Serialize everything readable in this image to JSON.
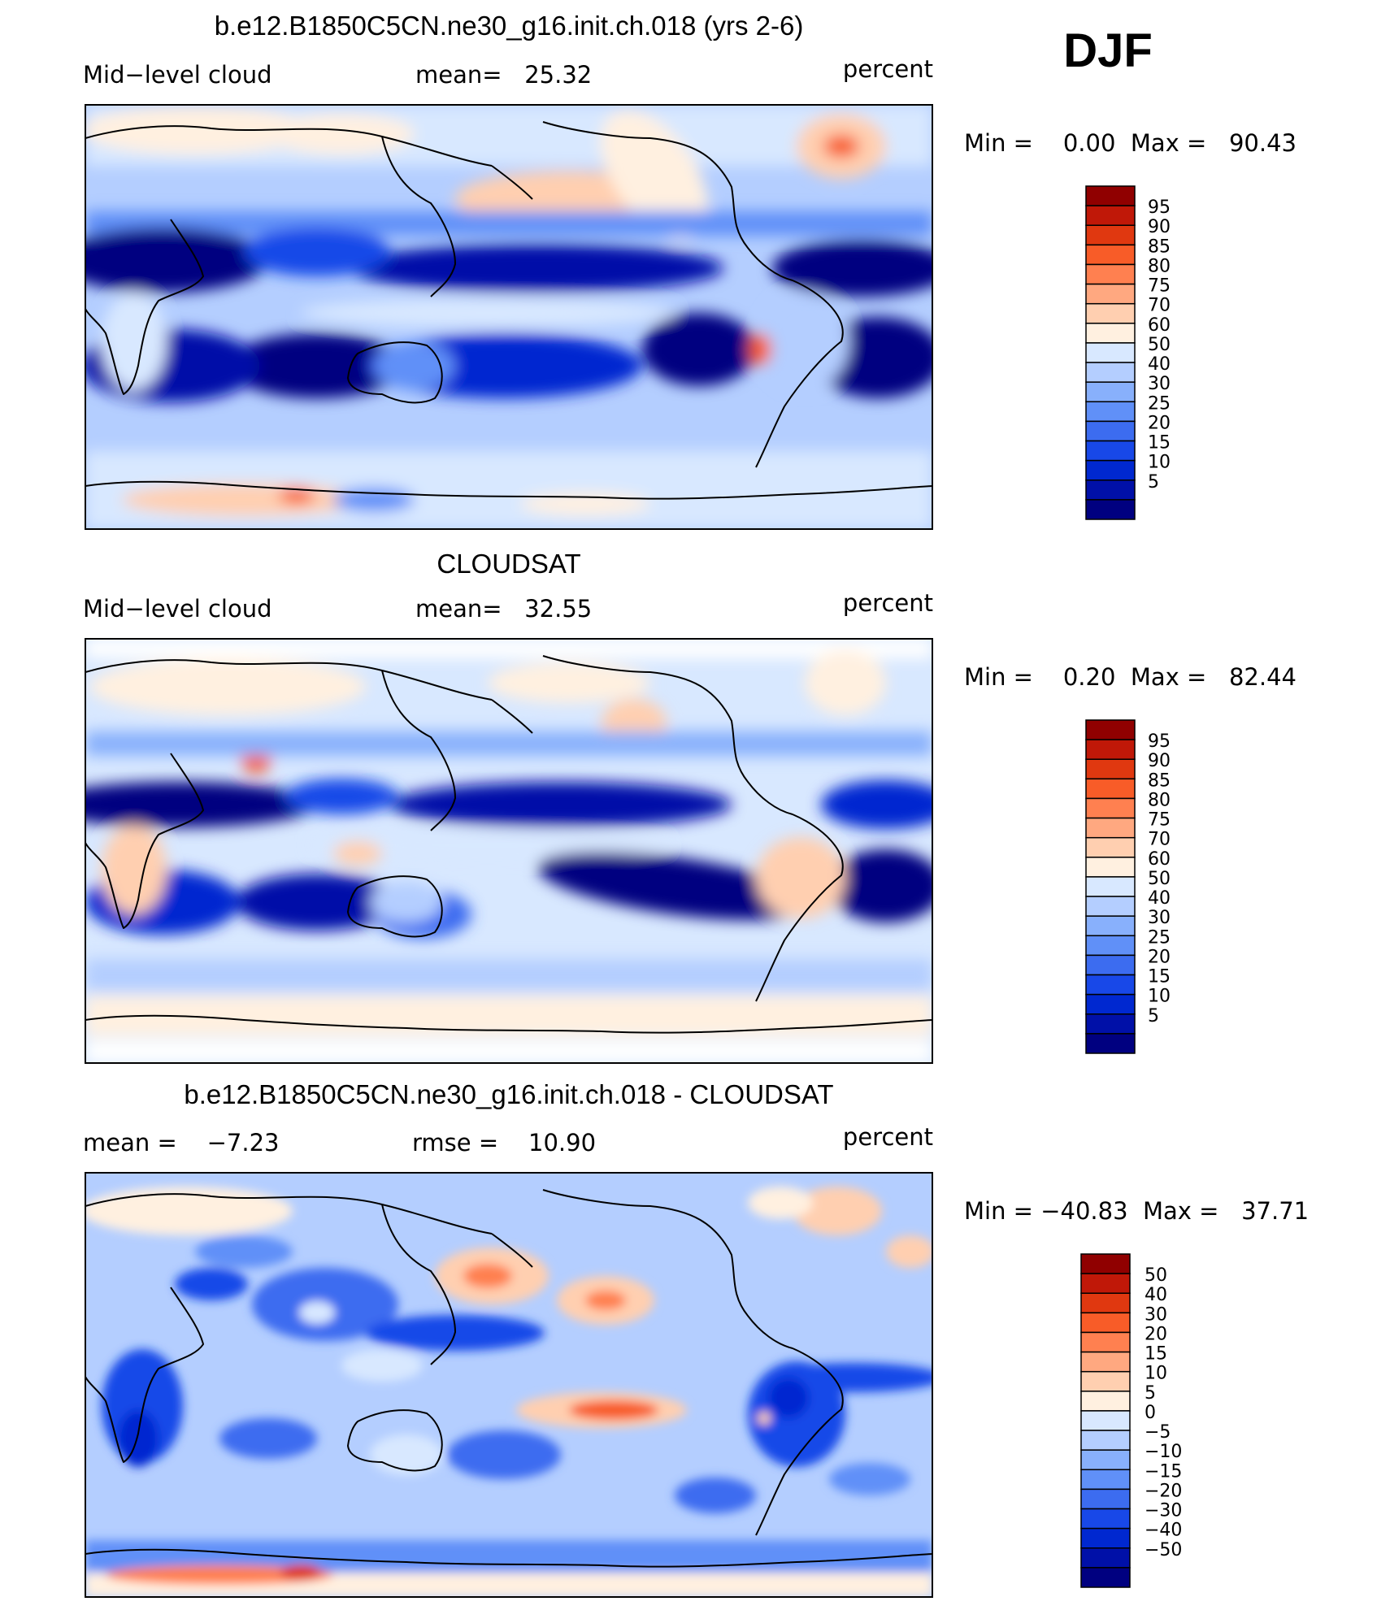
{
  "season": "DJF",
  "units_label": "percent",
  "colors": {
    "seq_scale": [
      "#000080",
      "#0010a8",
      "#0028d0",
      "#1848e8",
      "#3c6cf0",
      "#6090f8",
      "#88b0fc",
      "#b4ceff",
      "#d8e8ff",
      "#fff0e0",
      "#ffcfb0",
      "#ffa880",
      "#ff8050",
      "#f85c28",
      "#e03810",
      "#c01808",
      "#900000"
    ],
    "diff_scale": [
      "#000080",
      "#0010a8",
      "#0028d0",
      "#1848e8",
      "#3c6cf0",
      "#6090f8",
      "#88b0fc",
      "#b4ceff",
      "#d8e8ff",
      "#fff0e0",
      "#ffcfb0",
      "#ffa880",
      "#ff8050",
      "#f85c28",
      "#e03810",
      "#c01808",
      "#900000"
    ],
    "coastline": "#000000"
  },
  "panels": [
    {
      "title": "b.e12.B1850C5CN.ne30_g16.init.ch.018 (yrs 2-6)",
      "left_label": "Mid−level cloud",
      "center_label": "mean=   25.32",
      "right_label": "percent",
      "min_max": "Min =    0.00  Max =   90.43"
    },
    {
      "title": "CLOUDSAT",
      "left_label": "Mid−level cloud",
      "center_label": "mean=   32.55",
      "right_label": "percent",
      "min_max": "Min =    0.20  Max =   82.44"
    },
    {
      "title": "b.e12.B1850C5CN.ne30_g16.init.ch.018 - CLOUDSAT",
      "left_label": "mean =    −7.23",
      "center_label": "rmse =    10.90",
      "right_label": "percent",
      "min_max": "Min = −40.83  Max =   37.71"
    }
  ],
  "chart_data": [
    {
      "type": "heatmap",
      "subtype": "global-map-filled-contour",
      "title": "b.e12.B1850C5CN.ne30_g16.init.ch.018 (yrs 2-6)",
      "variable": "Mid-level cloud",
      "units": "percent",
      "season": "DJF",
      "mean": 25.32,
      "min": 0.0,
      "max": 90.43,
      "colorbar_levels": [
        95,
        90,
        85,
        80,
        75,
        70,
        60,
        50,
        40,
        30,
        25,
        20,
        15,
        10,
        5
      ],
      "colorbar_labels": [
        "95",
        "90",
        "85",
        "80",
        "75",
        "70",
        "60",
        "50",
        "40",
        "30",
        "25",
        "20",
        "15",
        "10",
        "5"
      ]
    },
    {
      "type": "heatmap",
      "subtype": "global-map-filled-contour",
      "title": "CLOUDSAT",
      "variable": "Mid-level cloud",
      "units": "percent",
      "season": "DJF",
      "mean": 32.55,
      "min": 0.2,
      "max": 82.44,
      "colorbar_levels": [
        95,
        90,
        85,
        80,
        75,
        70,
        60,
        50,
        40,
        30,
        25,
        20,
        15,
        10,
        5
      ],
      "colorbar_labels": [
        "95",
        "90",
        "85",
        "80",
        "75",
        "70",
        "60",
        "50",
        "40",
        "30",
        "25",
        "20",
        "15",
        "10",
        "5"
      ]
    },
    {
      "type": "heatmap",
      "subtype": "global-map-filled-contour-difference",
      "title": "b.e12.B1850C5CN.ne30_g16.init.ch.018 - CLOUDSAT",
      "units": "percent",
      "season": "DJF",
      "mean": -7.23,
      "rmse": 10.9,
      "min": -40.83,
      "max": 37.71,
      "colorbar_levels": [
        50,
        40,
        30,
        20,
        15,
        10,
        5,
        0,
        -5,
        -10,
        -15,
        -20,
        -30,
        -40,
        -50
      ],
      "colorbar_labels": [
        "50",
        "40",
        "30",
        "20",
        "15",
        "10",
        "5",
        "0",
        "−5",
        "−10",
        "−15",
        "−20",
        "−30",
        "−40",
        "−50"
      ]
    }
  ]
}
